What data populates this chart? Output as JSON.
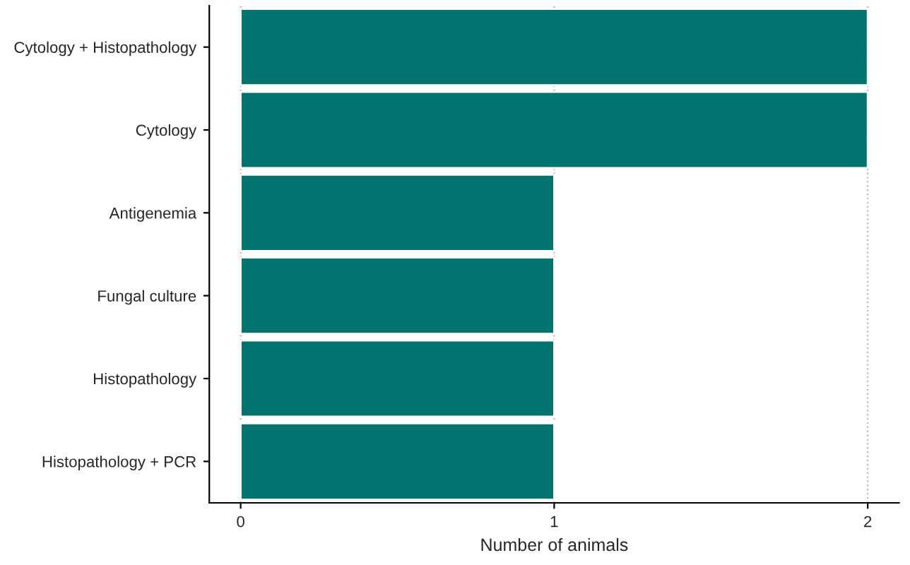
{
  "chart_data": {
    "type": "bar",
    "orientation": "horizontal",
    "xlabel": "Number of animals",
    "categories": [
      "Cytology + Histopathology",
      "Cytology",
      "Antigenemia",
      "Fungal culture",
      "Histopathology",
      "Histopathology + PCR"
    ],
    "values": [
      2,
      2,
      1,
      1,
      1,
      1
    ],
    "color": "#037370",
    "xlim": [
      -0.1,
      2.1
    ],
    "xticks": [
      0,
      1,
      2
    ],
    "grid": "x"
  }
}
